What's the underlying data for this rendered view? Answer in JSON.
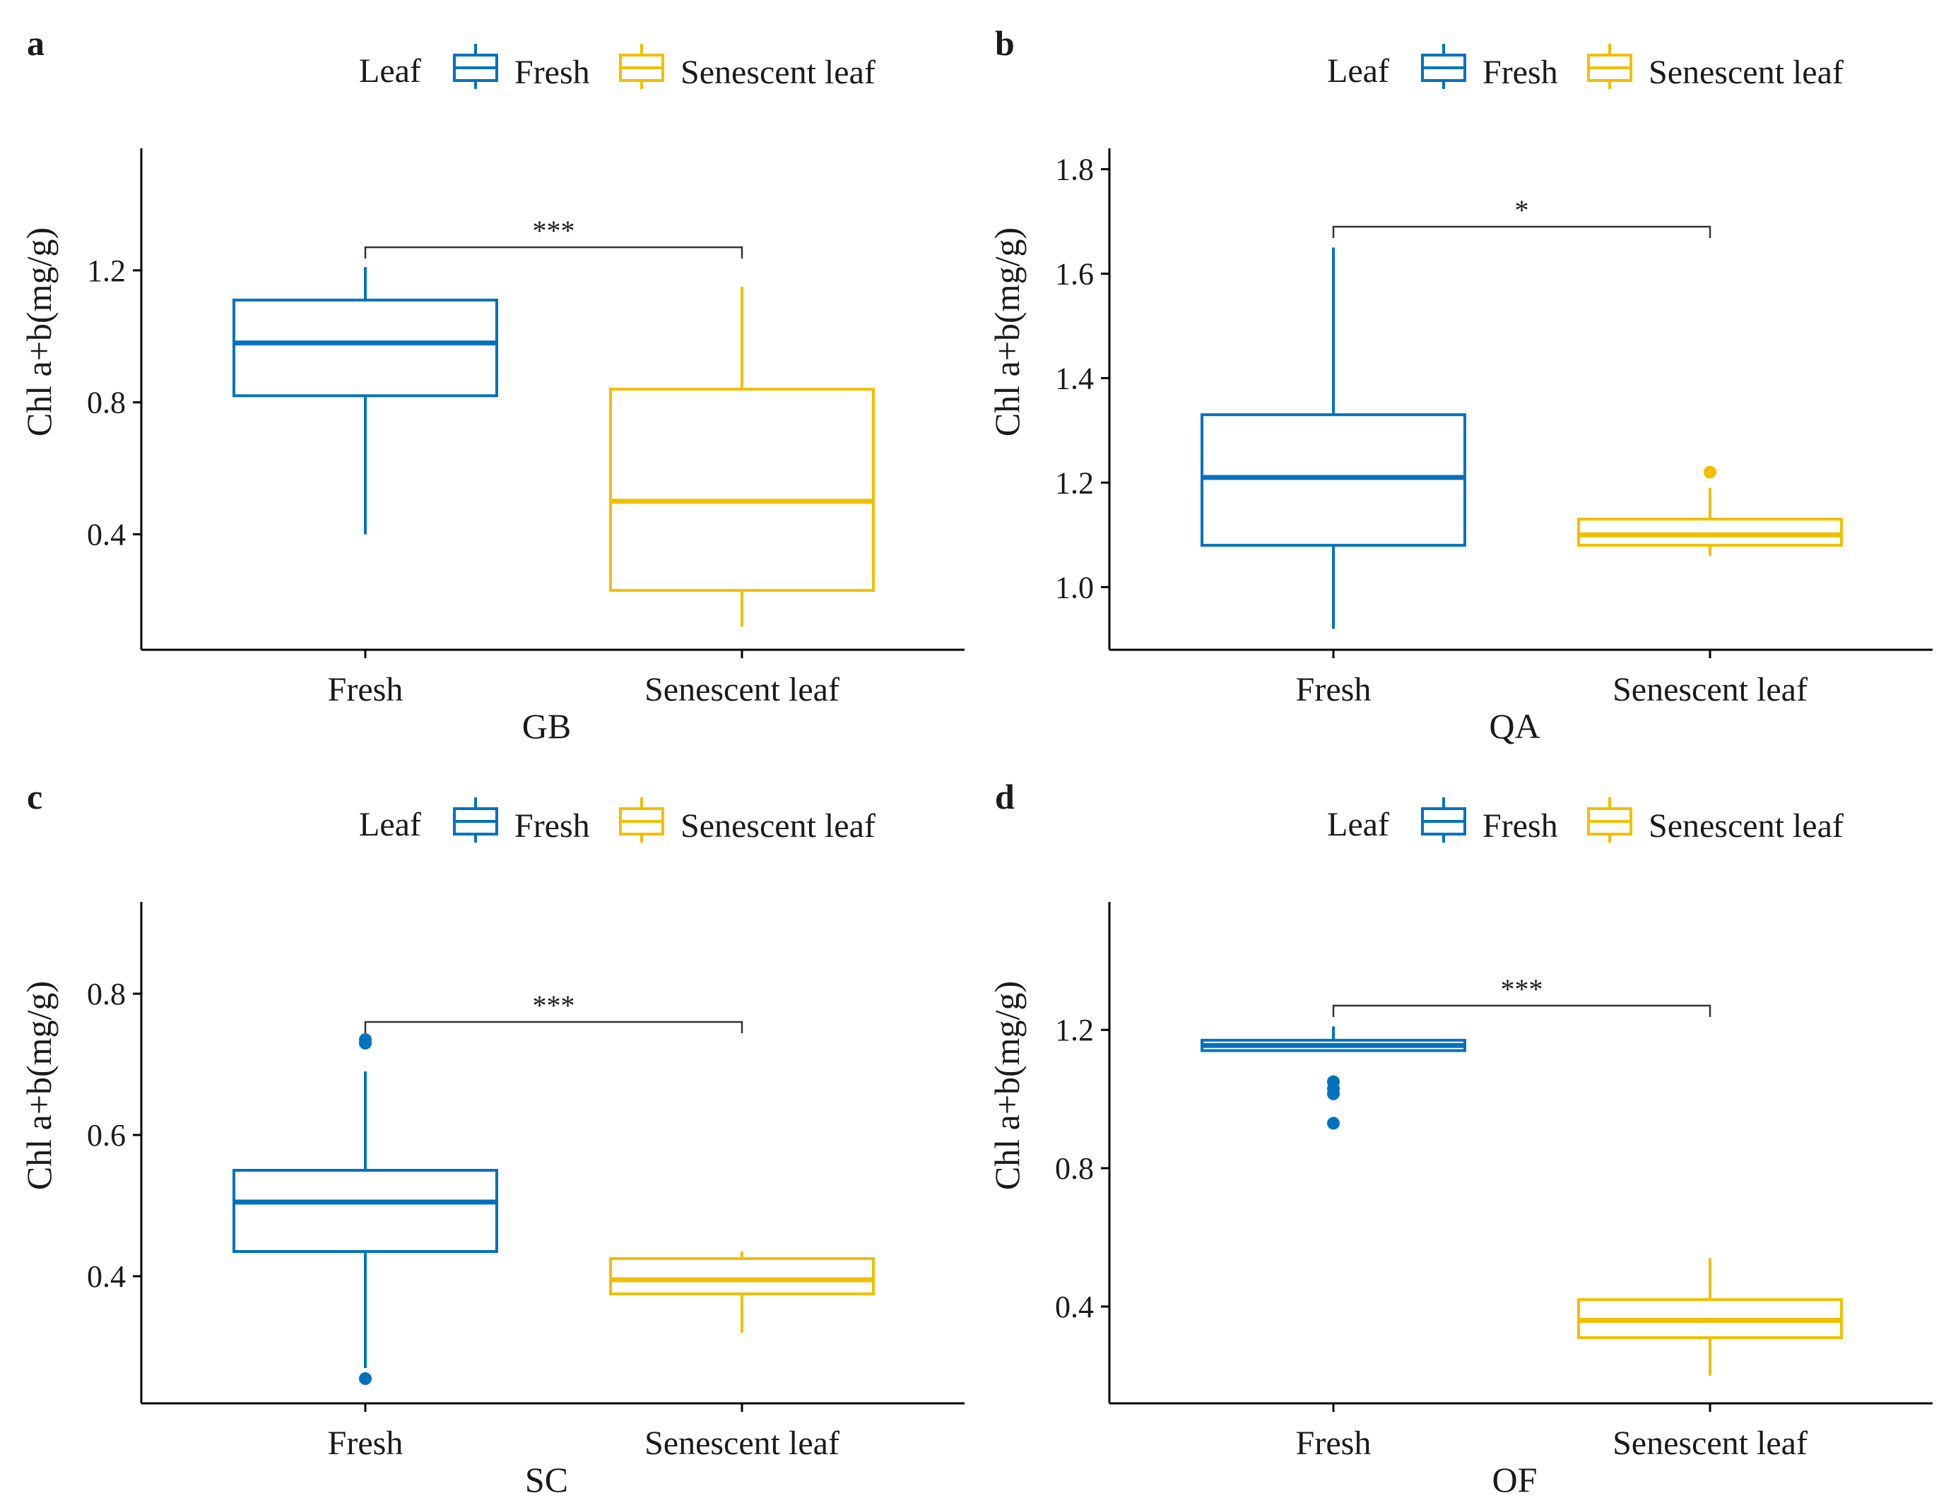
{
  "colors": {
    "fresh": "#0072BD",
    "senescent": "#F2BE00",
    "axis": "#000000",
    "bracket": "#333333"
  },
  "legend": {
    "title": "Leaf",
    "items": [
      "Fresh",
      "Senescent leaf"
    ]
  },
  "chart_data": [
    {
      "type": "box",
      "panel_label": "a",
      "title": "GB",
      "xlabel": "GB",
      "ylabel": "Chl a+b(mg/g)",
      "categories": [
        "Fresh",
        "Senescent leaf"
      ],
      "ylim": [
        0.05,
        1.57
      ],
      "yticks": [
        0.4,
        0.8,
        1.2
      ],
      "ytick_labels": [
        "0.4",
        "0.8",
        "1.2"
      ],
      "boxes": [
        {
          "category": "Fresh",
          "whisker_low": 0.4,
          "q1": 0.82,
          "median": 0.98,
          "q3": 1.11,
          "whisker_high": 1.21,
          "outliers": []
        },
        {
          "category": "Senescent leaf",
          "whisker_low": 0.12,
          "q1": 0.23,
          "median": 0.5,
          "q3": 0.84,
          "whisker_high": 1.15,
          "outliers": []
        }
      ],
      "significance": {
        "label": "***",
        "y": 1.27
      }
    },
    {
      "type": "box",
      "panel_label": "b",
      "title": "QA",
      "xlabel": "QA",
      "ylabel": "Chl a+b(mg/g)",
      "categories": [
        "Fresh",
        "Senescent leaf"
      ],
      "ylim": [
        0.88,
        1.84
      ],
      "yticks": [
        1.0,
        1.2,
        1.4,
        1.6,
        1.8
      ],
      "ytick_labels": [
        "1.0",
        "1.2",
        "1.4",
        "1.6",
        "1.8"
      ],
      "boxes": [
        {
          "category": "Fresh",
          "whisker_low": 0.92,
          "q1": 1.08,
          "median": 1.21,
          "q3": 1.33,
          "whisker_high": 1.65,
          "outliers": []
        },
        {
          "category": "Senescent leaf",
          "whisker_low": 1.06,
          "q1": 1.08,
          "median": 1.1,
          "q3": 1.13,
          "whisker_high": 1.19,
          "outliers": [
            1.22
          ]
        }
      ],
      "significance": {
        "label": "*",
        "y": 1.69
      }
    },
    {
      "type": "box",
      "panel_label": "c",
      "title": "SC",
      "xlabel": "SC",
      "ylabel": "Chl a+b(mg/g)",
      "categories": [
        "Fresh",
        "Senescent leaf"
      ],
      "ylim": [
        0.22,
        0.93
      ],
      "yticks": [
        0.4,
        0.6,
        0.8
      ],
      "ytick_labels": [
        "0.4",
        "0.6",
        "0.8"
      ],
      "boxes": [
        {
          "category": "Fresh",
          "whisker_low": 0.27,
          "q1": 0.435,
          "median": 0.505,
          "q3": 0.55,
          "whisker_high": 0.69,
          "outliers": [
            0.73,
            0.735,
            0.255
          ]
        },
        {
          "category": "Senescent leaf",
          "whisker_low": 0.32,
          "q1": 0.375,
          "median": 0.395,
          "q3": 0.425,
          "whisker_high": 0.435,
          "outliers": []
        }
      ],
      "significance": {
        "label": "***",
        "y": 0.76
      }
    },
    {
      "type": "box",
      "panel_label": "d",
      "title": "OF",
      "xlabel": "OF",
      "ylabel": "Chl a+b(mg/g)",
      "categories": [
        "Fresh",
        "Senescent leaf"
      ],
      "ylim": [
        0.12,
        1.57
      ],
      "yticks": [
        0.4,
        0.8,
        1.2
      ],
      "ytick_labels": [
        "0.4",
        "0.8",
        "1.2"
      ],
      "boxes": [
        {
          "category": "Fresh",
          "whisker_low": 1.14,
          "q1": 1.14,
          "median": 1.155,
          "q3": 1.17,
          "whisker_high": 1.21,
          "outliers": [
            1.05,
            1.03,
            1.015,
            0.93
          ]
        },
        {
          "category": "Senescent leaf",
          "whisker_low": 0.2,
          "q1": 0.31,
          "median": 0.36,
          "q3": 0.42,
          "whisker_high": 0.54,
          "outliers": []
        }
      ],
      "significance": {
        "label": "***",
        "y": 1.27
      }
    }
  ]
}
